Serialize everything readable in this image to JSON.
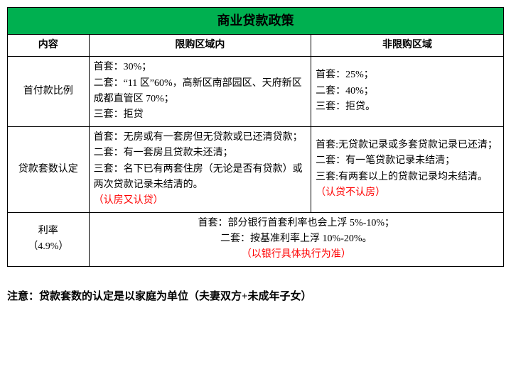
{
  "title": "商业贷款政策",
  "headers": {
    "col1": "内容",
    "col2": "限购区域内",
    "col3": "非限购区域"
  },
  "rows": {
    "downpayment": {
      "label": "首付款比例",
      "restricted": "首套：30%；\n二套：“11 区”60%，高新区南部园区、天府新区成都直管区 70%；\n三套：拒贷",
      "unrestricted": "首套：25%；\n二套：40%；\n三套：拒贷。"
    },
    "loancount": {
      "label": "贷款套数认定",
      "restricted_main": "首套：无房或有一套房但无贷款或已还清贷款；\n二套：有一套房且贷款未还清；\n三套：名下已有两套住房（无论是否有贷款）或两次贷款记录未结清的。",
      "restricted_note": "（认房又认贷）",
      "unrestricted_main": "首套:无贷款记录或多套贷款记录已还清；\n二套：有一笔贷款记录未结清；\n三套:有两套以上的贷款记录均未结清。",
      "unrestricted_note": "（认贷不认房）"
    },
    "rate": {
      "label_line1": "利率",
      "label_line2": "（4.9%）",
      "merged_main": "首套：部分银行首套利率也会上浮 5%-10%；\n二套：按基准利率上浮 10%-20%。",
      "merged_note": "（以银行具体执行为准）"
    }
  },
  "footer_note": "注意：贷款套数的认定是以家庭为单位（夫妻双方+未成年子女）",
  "colors": {
    "header_bg": "#00b050",
    "accent": "#ff0000",
    "border": "#000000",
    "background": "#ffffff",
    "text": "#000000"
  }
}
